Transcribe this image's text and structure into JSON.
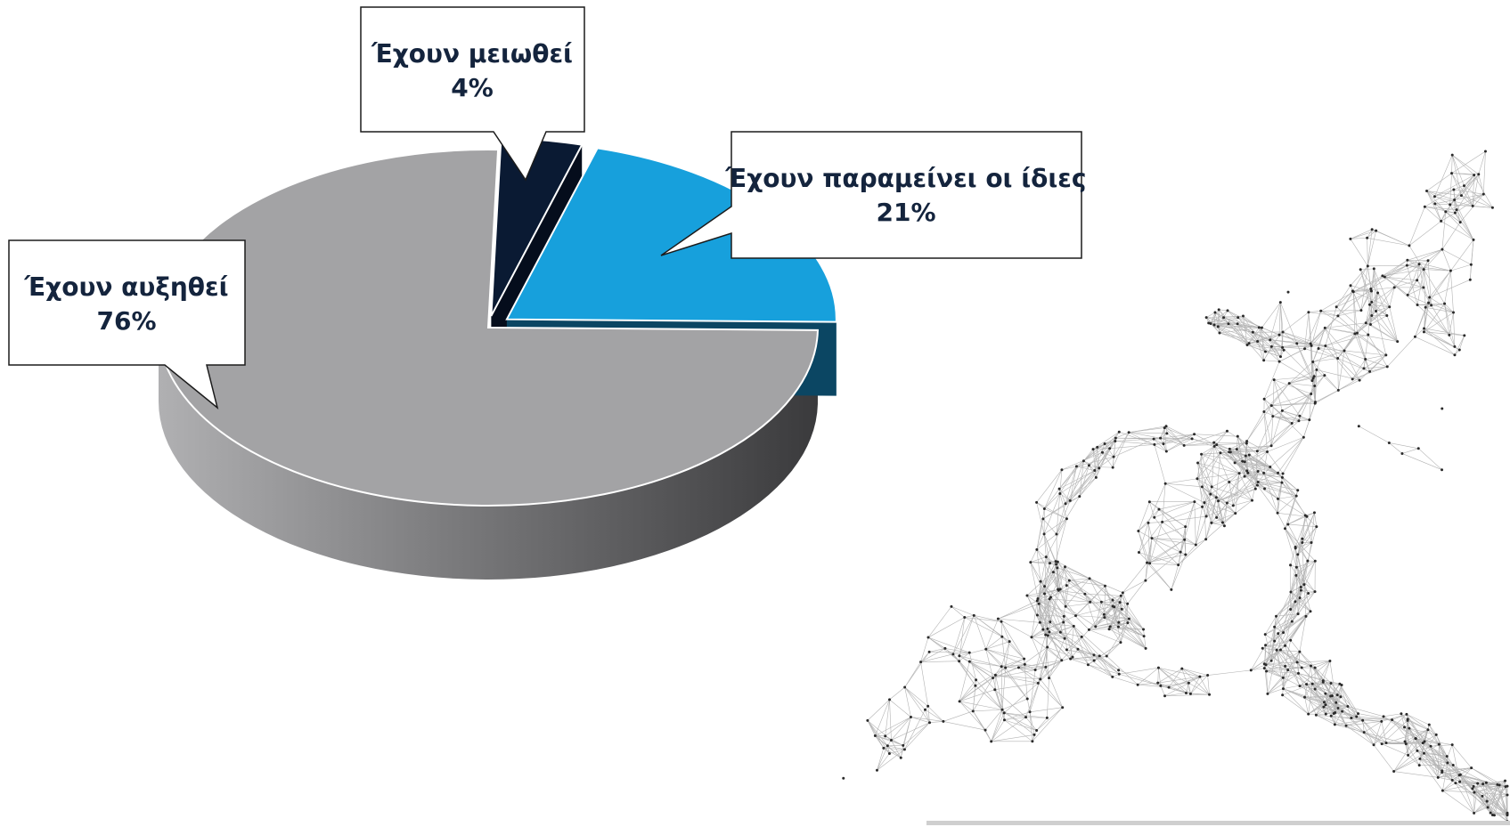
{
  "chart_data": {
    "type": "pie",
    "title": "",
    "slices": [
      {
        "label": "Έχουν αυξηθεί",
        "value": 76,
        "display": "76%",
        "color": "#a3a3a5",
        "side_color": "#6e6e70"
      },
      {
        "label": "Έχουν μειωθεί",
        "value": 4,
        "display": "4%",
        "color": "#0a1a33",
        "side_color": "#050d1c"
      },
      {
        "label": "Έχουν παραμείνει οι ίδιες",
        "value": 21,
        "display": "21%",
        "color": "#17a0dc",
        "side_color": "#0b4663"
      }
    ],
    "style": "3d-exploded",
    "legend": "none"
  },
  "decoration": {
    "illustration": "wireframe-growth-arrow-with-magnifier"
  }
}
